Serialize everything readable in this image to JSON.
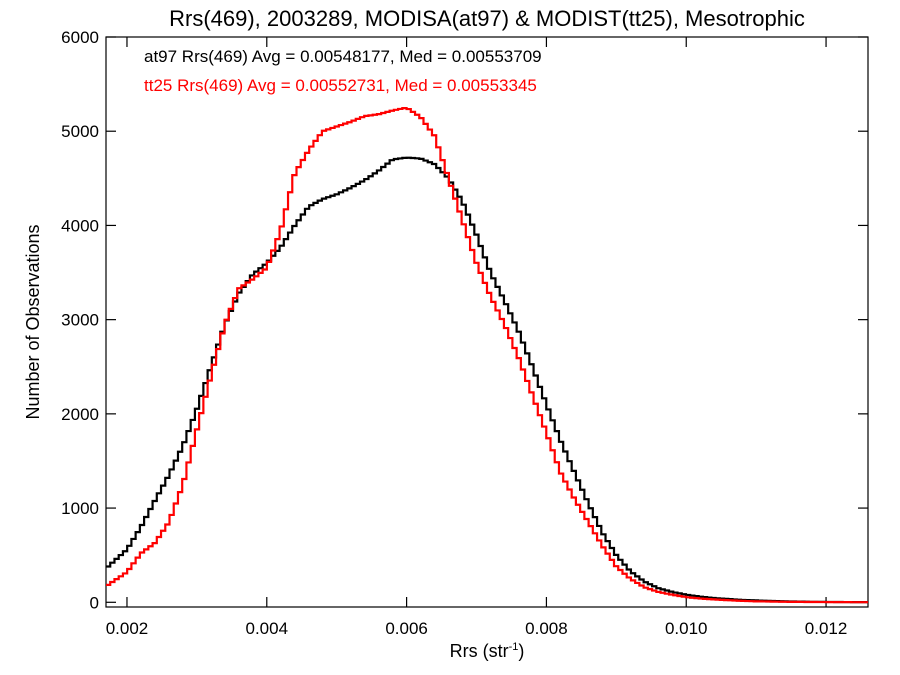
{
  "chart_data": {
    "type": "line",
    "step": true,
    "title": "Rrs(469), 2003289, MODISA(at97) & MODIST(tt25), Mesotrophic",
    "xlabel_main": "Rrs (str",
    "xlabel_sup": "-1",
    "xlabel_close": ")",
    "ylabel": "Number of Observations",
    "xlim": [
      0.0017,
      0.0126
    ],
    "ylim": [
      -50,
      6000
    ],
    "x_ticks": [
      0.002,
      0.004,
      0.006,
      0.008,
      0.01,
      0.012
    ],
    "x_tick_labels": [
      "0.002",
      "0.004",
      "0.006",
      "0.008",
      "0.010",
      "0.012"
    ],
    "y_ticks": [
      0,
      1000,
      2000,
      3000,
      4000,
      5000,
      6000
    ],
    "y_tick_labels": [
      "0",
      "1000",
      "2000",
      "3000",
      "4000",
      "5000",
      "6000"
    ],
    "grid": false,
    "legend_position": "top-left",
    "x": [
      0.0017,
      0.002,
      0.0022,
      0.0024,
      0.0026,
      0.0028,
      0.003,
      0.0032,
      0.0034,
      0.0036,
      0.0038,
      0.004,
      0.0042,
      0.0044,
      0.0046,
      0.0048,
      0.005,
      0.0052,
      0.0054,
      0.0056,
      0.0058,
      0.006,
      0.0062,
      0.0064,
      0.0066,
      0.0068,
      0.007,
      0.0072,
      0.0074,
      0.0076,
      0.0078,
      0.008,
      0.0082,
      0.0084,
      0.0086,
      0.0088,
      0.009,
      0.0092,
      0.0094,
      0.0096,
      0.0098,
      0.01,
      0.0102,
      0.0104,
      0.0106,
      0.0108,
      0.011,
      0.0112,
      0.0114,
      0.0116,
      0.0118,
      0.012,
      0.0122,
      0.0124,
      0.0126
    ],
    "series": [
      {
        "name": "at97",
        "legend": "at97 Rrs(469) Avg = 0.00548177, Med = 0.00553709",
        "color": "#000000",
        "values": [
          360,
          560,
          800,
          1080,
          1350,
          1660,
          2050,
          2500,
          2950,
          3280,
          3480,
          3600,
          3770,
          4000,
          4200,
          4280,
          4330,
          4400,
          4480,
          4580,
          4700,
          4720,
          4710,
          4650,
          4500,
          4250,
          3900,
          3500,
          3200,
          2880,
          2500,
          2100,
          1720,
          1380,
          1050,
          740,
          500,
          330,
          220,
          150,
          110,
          80,
          60,
          45,
          35,
          25,
          20,
          15,
          10,
          8,
          5,
          4,
          3,
          2,
          2
        ]
      },
      {
        "name": "tt25",
        "legend": "tt25 Rrs(469) Avg = 0.00552731, Med = 0.00553345",
        "color": "#ff0000",
        "values": [
          170,
          320,
          520,
          630,
          850,
          1250,
          1830,
          2400,
          2950,
          3330,
          3430,
          3550,
          3950,
          4550,
          4800,
          5000,
          5050,
          5100,
          5160,
          5180,
          5220,
          5250,
          5150,
          4950,
          4500,
          4050,
          3600,
          3250,
          2950,
          2600,
          2200,
          1800,
          1380,
          1100,
          850,
          600,
          380,
          250,
          160,
          110,
          80,
          55,
          40,
          30,
          22,
          15,
          10,
          8,
          5,
          4,
          3,
          2,
          2,
          1,
          1
        ]
      }
    ]
  }
}
